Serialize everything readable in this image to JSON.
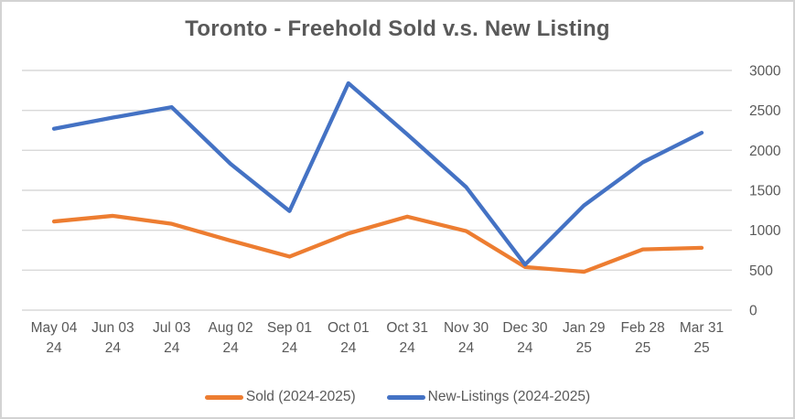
{
  "chart_data": {
    "type": "line",
    "title": "Toronto - Freehold Sold v.s. New Listing",
    "categories": [
      "May 04 24",
      "Jun 03 24",
      "Jul 03 24",
      "Aug 02 24",
      "Sep 01 24",
      "Oct 01 24",
      "Oct 31 24",
      "Nov 30 24",
      "Dec 30 24",
      "Jan 29 25",
      "Feb 28 25",
      "Mar 31 25"
    ],
    "series": [
      {
        "name": "Sold (2024-2025)",
        "color": "#ED7D31",
        "values": [
          1110,
          1180,
          1080,
          870,
          670,
          960,
          1170,
          990,
          540,
          480,
          760,
          780
        ]
      },
      {
        "name": "New-Listings (2024-2025)",
        "color": "#4472C4",
        "values": [
          2270,
          2410,
          2540,
          1830,
          1240,
          2840,
          2200,
          1540,
          570,
          1310,
          1850,
          2220
        ]
      }
    ],
    "y_axis": {
      "min": 0,
      "max": 3000,
      "step": 500,
      "side": "right",
      "tick_labels": [
        "0",
        "500",
        "1000",
        "1500",
        "2000",
        "2500",
        "3000"
      ]
    },
    "x_axis": {
      "tick_label_lines": 2
    },
    "grid": true,
    "legend_position": "bottom"
  },
  "colors": {
    "text": "#595959",
    "gridline": "#D9D9D9",
    "border": "#D3D3D3",
    "background": "#FFFFFF"
  }
}
